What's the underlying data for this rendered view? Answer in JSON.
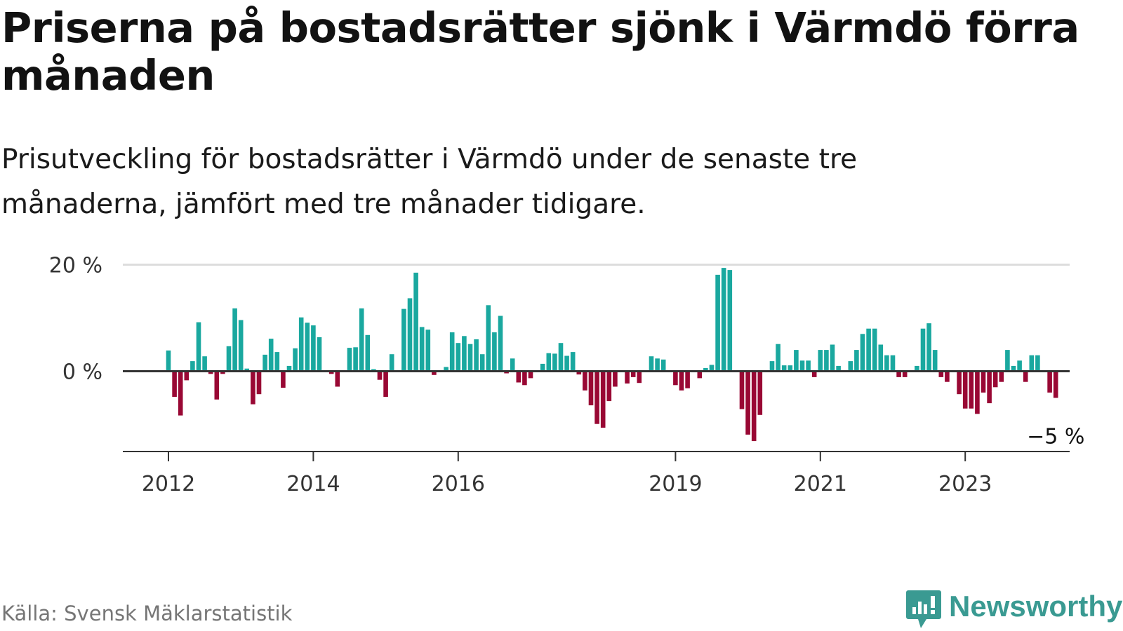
{
  "title": "Priserna på bostadsrätter sjönk i Värmdö förra månaden",
  "subtitle": "Prisutveckling för bostadsrätter i Värmdö under de senaste tre månaderna, jämfört med tre månader tidigare.",
  "source": "Källa: Svensk Mäklarstatistik",
  "brand": "Newsworthy",
  "colors": {
    "positive": "#1aa89f",
    "negative": "#990834",
    "axis": "#333333",
    "grid": "#dddddd",
    "brand": "#3a9a92"
  },
  "chart_data": {
    "type": "bar",
    "start": "2012-01",
    "frequency": "monthly",
    "unit": "%",
    "ylim": [
      -15,
      20
    ],
    "yticks": [
      {
        "value": 0,
        "label": "0 %"
      },
      {
        "value": 20,
        "label": "20 %"
      }
    ],
    "xticks": [
      {
        "month_index": 0,
        "label": "2012"
      },
      {
        "month_index": 24,
        "label": "2014"
      },
      {
        "month_index": 48,
        "label": "2016"
      },
      {
        "month_index": 84,
        "label": "2019"
      },
      {
        "month_index": 108,
        "label": "2021"
      },
      {
        "month_index": 132,
        "label": "2023"
      }
    ],
    "last_value_label": "−5 %",
    "values": [
      3.9,
      -4.8,
      -8.3,
      -1.7,
      1.9,
      9.2,
      2.8,
      -0.5,
      -5.3,
      -0.5,
      4.7,
      11.8,
      9.6,
      0.5,
      -6.2,
      -4.3,
      3.1,
      6.1,
      3.6,
      -3.1,
      1.0,
      4.3,
      10.1,
      9.1,
      8.6,
      6.4,
      0.0,
      -0.5,
      -2.9,
      0.0,
      4.4,
      4.5,
      11.8,
      6.8,
      0.4,
      -1.6,
      -4.8,
      3.2,
      0.0,
      11.7,
      13.7,
      18.5,
      8.3,
      7.8,
      -0.7,
      0.0,
      0.8,
      7.3,
      5.3,
      6.6,
      5.1,
      6.0,
      3.2,
      12.4,
      7.3,
      10.4,
      -0.4,
      2.4,
      -2.1,
      -2.6,
      -1.3,
      0.0,
      1.4,
      3.4,
      3.3,
      5.3,
      2.9,
      3.6,
      -0.6,
      -3.6,
      -6.4,
      -9.9,
      -10.6,
      -5.6,
      -2.9,
      0.0,
      -2.3,
      -1.1,
      -2.2,
      0.0,
      2.8,
      2.4,
      2.2,
      0.0,
      -2.6,
      -3.6,
      -3.2,
      0.0,
      -1.3,
      0.6,
      1.2,
      18.1,
      19.4,
      19.0,
      0.0,
      -7.1,
      -11.9,
      -13.1,
      -8.2,
      0.0,
      1.9,
      5.1,
      1.1,
      1.1,
      4.0,
      2.0,
      2.0,
      -1.1,
      4.0,
      4.0,
      5.0,
      1.0,
      0.0,
      1.9,
      4.0,
      7.0,
      8.0,
      8.0,
      5.0,
      3.0,
      3.0,
      -1.1,
      -1.1,
      0.0,
      1.0,
      8.0,
      9.0,
      4.0,
      -1.1,
      -2.0,
      0.0,
      -4.3,
      -7.0,
      -7.0,
      -8.0,
      -4.0,
      -6.0,
      -3.0,
      -2.0,
      4.0,
      1.0,
      2.0,
      -2.0,
      3.0,
      3.0,
      0.0,
      -4.0,
      -5.0
    ]
  }
}
